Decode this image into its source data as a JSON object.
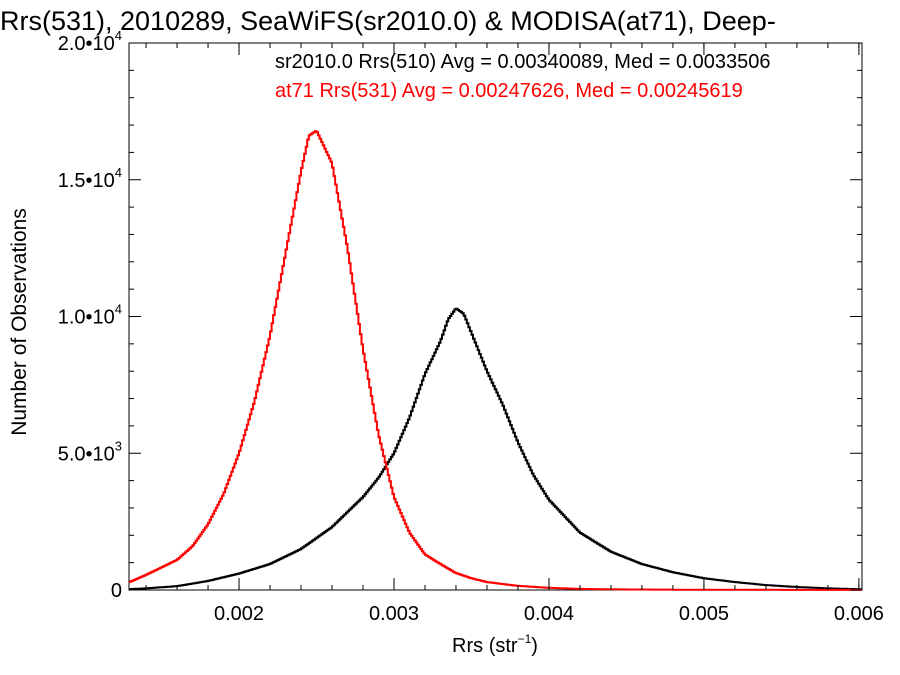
{
  "chart_data": {
    "type": "histogram",
    "title": "Rrs(531), 2010289, SeaWiFS(sr2010.0) & MODISA(at71), Deep-",
    "xlabel": {
      "base": "Rrs (str",
      "sup": "−1",
      "suffix": ")"
    },
    "ylabel": "Number of Observations",
    "xlim": [
      0.00129,
      0.00602
    ],
    "ylim": [
      0,
      20000
    ],
    "x_ticks": [
      {
        "value": 0.002,
        "label": "0.002"
      },
      {
        "value": 0.003,
        "label": "0.003"
      },
      {
        "value": 0.004,
        "label": "0.004"
      },
      {
        "value": 0.005,
        "label": "0.005"
      },
      {
        "value": 0.006,
        "label": "0.006"
      }
    ],
    "y_ticks": [
      {
        "value": 0,
        "mant": "0",
        "exp": ""
      },
      {
        "value": 5000,
        "mant": "5.0•10",
        "exp": "3"
      },
      {
        "value": 10000,
        "mant": "1.0•10",
        "exp": "4"
      },
      {
        "value": 15000,
        "mant": "1.5•10",
        "exp": "4"
      },
      {
        "value": 20000,
        "mant": "2.0•10",
        "exp": "4"
      }
    ],
    "grid": false,
    "legend_position": "top-right",
    "series": [
      {
        "name": "sr2010.0 Rrs(510) Avg = 0.00340089, Med = 0.0033506",
        "color": "#000000",
        "points": [
          [
            0.00129,
            30
          ],
          [
            0.0014,
            60
          ],
          [
            0.0016,
            140
          ],
          [
            0.0018,
            330
          ],
          [
            0.002,
            600
          ],
          [
            0.0022,
            950
          ],
          [
            0.0024,
            1500
          ],
          [
            0.0026,
            2300
          ],
          [
            0.0028,
            3400
          ],
          [
            0.0029,
            4100
          ],
          [
            0.003,
            5000
          ],
          [
            0.0031,
            6300
          ],
          [
            0.0032,
            7900
          ],
          [
            0.0033,
            9100
          ],
          [
            0.00335,
            9900
          ],
          [
            0.0034,
            10300
          ],
          [
            0.00345,
            10100
          ],
          [
            0.0035,
            9400
          ],
          [
            0.0036,
            8000
          ],
          [
            0.0037,
            6800
          ],
          [
            0.0038,
            5400
          ],
          [
            0.0039,
            4200
          ],
          [
            0.004,
            3300
          ],
          [
            0.0042,
            2100
          ],
          [
            0.0044,
            1400
          ],
          [
            0.0046,
            950
          ],
          [
            0.0048,
            650
          ],
          [
            0.005,
            430
          ],
          [
            0.0052,
            290
          ],
          [
            0.0054,
            180
          ],
          [
            0.0056,
            110
          ],
          [
            0.0058,
            60
          ],
          [
            0.006,
            30
          ]
        ]
      },
      {
        "name": "at71 Rrs(531) Avg = 0.00247626, Med = 0.00245619",
        "color": "#ff0000",
        "points": [
          [
            0.00129,
            280
          ],
          [
            0.0014,
            550
          ],
          [
            0.0016,
            1100
          ],
          [
            0.0017,
            1600
          ],
          [
            0.0018,
            2400
          ],
          [
            0.0019,
            3500
          ],
          [
            0.002,
            5000
          ],
          [
            0.0021,
            6900
          ],
          [
            0.0022,
            9300
          ],
          [
            0.0023,
            12300
          ],
          [
            0.0024,
            15300
          ],
          [
            0.00245,
            16600
          ],
          [
            0.0025,
            16800
          ],
          [
            0.0026,
            15600
          ],
          [
            0.0027,
            12500
          ],
          [
            0.0028,
            8800
          ],
          [
            0.0029,
            5700
          ],
          [
            0.003,
            3400
          ],
          [
            0.0031,
            2100
          ],
          [
            0.0032,
            1300
          ],
          [
            0.0033,
            950
          ],
          [
            0.0034,
            620
          ],
          [
            0.0035,
            430
          ],
          [
            0.0036,
            290
          ],
          [
            0.0038,
            150
          ],
          [
            0.004,
            80
          ],
          [
            0.0042,
            40
          ],
          [
            0.0045,
            20
          ],
          [
            0.005,
            8
          ],
          [
            0.006,
            3
          ]
        ]
      }
    ]
  }
}
